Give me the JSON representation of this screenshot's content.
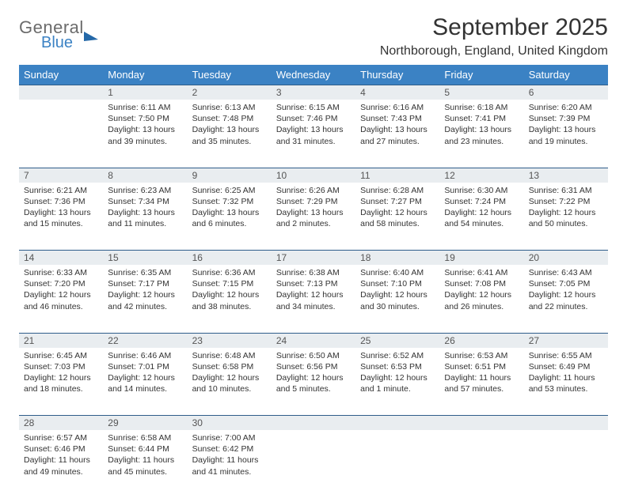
{
  "logo": {
    "general": "General",
    "blue": "Blue"
  },
  "title": "September 2025",
  "location": "Northborough, England, United Kingdom",
  "dayHeaders": [
    "Sunday",
    "Monday",
    "Tuesday",
    "Wednesday",
    "Thursday",
    "Friday",
    "Saturday"
  ],
  "colors": {
    "headerBg": "#3b82c4",
    "headerText": "#ffffff",
    "dayNumBg": "#e9edf0",
    "rowDivider": "#2e5d8a",
    "text": "#333333",
    "logoGray": "#6b6b6b",
    "logoBlue": "#3b82c4"
  },
  "weeks": [
    {
      "nums": [
        "",
        "1",
        "2",
        "3",
        "4",
        "5",
        "6"
      ],
      "cells": [
        null,
        {
          "sr": "Sunrise: 6:11 AM",
          "ss": "Sunset: 7:50 PM",
          "d1": "Daylight: 13 hours",
          "d2": "and 39 minutes."
        },
        {
          "sr": "Sunrise: 6:13 AM",
          "ss": "Sunset: 7:48 PM",
          "d1": "Daylight: 13 hours",
          "d2": "and 35 minutes."
        },
        {
          "sr": "Sunrise: 6:15 AM",
          "ss": "Sunset: 7:46 PM",
          "d1": "Daylight: 13 hours",
          "d2": "and 31 minutes."
        },
        {
          "sr": "Sunrise: 6:16 AM",
          "ss": "Sunset: 7:43 PM",
          "d1": "Daylight: 13 hours",
          "d2": "and 27 minutes."
        },
        {
          "sr": "Sunrise: 6:18 AM",
          "ss": "Sunset: 7:41 PM",
          "d1": "Daylight: 13 hours",
          "d2": "and 23 minutes."
        },
        {
          "sr": "Sunrise: 6:20 AM",
          "ss": "Sunset: 7:39 PM",
          "d1": "Daylight: 13 hours",
          "d2": "and 19 minutes."
        }
      ]
    },
    {
      "nums": [
        "7",
        "8",
        "9",
        "10",
        "11",
        "12",
        "13"
      ],
      "cells": [
        {
          "sr": "Sunrise: 6:21 AM",
          "ss": "Sunset: 7:36 PM",
          "d1": "Daylight: 13 hours",
          "d2": "and 15 minutes."
        },
        {
          "sr": "Sunrise: 6:23 AM",
          "ss": "Sunset: 7:34 PM",
          "d1": "Daylight: 13 hours",
          "d2": "and 11 minutes."
        },
        {
          "sr": "Sunrise: 6:25 AM",
          "ss": "Sunset: 7:32 PM",
          "d1": "Daylight: 13 hours",
          "d2": "and 6 minutes."
        },
        {
          "sr": "Sunrise: 6:26 AM",
          "ss": "Sunset: 7:29 PM",
          "d1": "Daylight: 13 hours",
          "d2": "and 2 minutes."
        },
        {
          "sr": "Sunrise: 6:28 AM",
          "ss": "Sunset: 7:27 PM",
          "d1": "Daylight: 12 hours",
          "d2": "and 58 minutes."
        },
        {
          "sr": "Sunrise: 6:30 AM",
          "ss": "Sunset: 7:24 PM",
          "d1": "Daylight: 12 hours",
          "d2": "and 54 minutes."
        },
        {
          "sr": "Sunrise: 6:31 AM",
          "ss": "Sunset: 7:22 PM",
          "d1": "Daylight: 12 hours",
          "d2": "and 50 minutes."
        }
      ]
    },
    {
      "nums": [
        "14",
        "15",
        "16",
        "17",
        "18",
        "19",
        "20"
      ],
      "cells": [
        {
          "sr": "Sunrise: 6:33 AM",
          "ss": "Sunset: 7:20 PM",
          "d1": "Daylight: 12 hours",
          "d2": "and 46 minutes."
        },
        {
          "sr": "Sunrise: 6:35 AM",
          "ss": "Sunset: 7:17 PM",
          "d1": "Daylight: 12 hours",
          "d2": "and 42 minutes."
        },
        {
          "sr": "Sunrise: 6:36 AM",
          "ss": "Sunset: 7:15 PM",
          "d1": "Daylight: 12 hours",
          "d2": "and 38 minutes."
        },
        {
          "sr": "Sunrise: 6:38 AM",
          "ss": "Sunset: 7:13 PM",
          "d1": "Daylight: 12 hours",
          "d2": "and 34 minutes."
        },
        {
          "sr": "Sunrise: 6:40 AM",
          "ss": "Sunset: 7:10 PM",
          "d1": "Daylight: 12 hours",
          "d2": "and 30 minutes."
        },
        {
          "sr": "Sunrise: 6:41 AM",
          "ss": "Sunset: 7:08 PM",
          "d1": "Daylight: 12 hours",
          "d2": "and 26 minutes."
        },
        {
          "sr": "Sunrise: 6:43 AM",
          "ss": "Sunset: 7:05 PM",
          "d1": "Daylight: 12 hours",
          "d2": "and 22 minutes."
        }
      ]
    },
    {
      "nums": [
        "21",
        "22",
        "23",
        "24",
        "25",
        "26",
        "27"
      ],
      "cells": [
        {
          "sr": "Sunrise: 6:45 AM",
          "ss": "Sunset: 7:03 PM",
          "d1": "Daylight: 12 hours",
          "d2": "and 18 minutes."
        },
        {
          "sr": "Sunrise: 6:46 AM",
          "ss": "Sunset: 7:01 PM",
          "d1": "Daylight: 12 hours",
          "d2": "and 14 minutes."
        },
        {
          "sr": "Sunrise: 6:48 AM",
          "ss": "Sunset: 6:58 PM",
          "d1": "Daylight: 12 hours",
          "d2": "and 10 minutes."
        },
        {
          "sr": "Sunrise: 6:50 AM",
          "ss": "Sunset: 6:56 PM",
          "d1": "Daylight: 12 hours",
          "d2": "and 5 minutes."
        },
        {
          "sr": "Sunrise: 6:52 AM",
          "ss": "Sunset: 6:53 PM",
          "d1": "Daylight: 12 hours",
          "d2": "and 1 minute."
        },
        {
          "sr": "Sunrise: 6:53 AM",
          "ss": "Sunset: 6:51 PM",
          "d1": "Daylight: 11 hours",
          "d2": "and 57 minutes."
        },
        {
          "sr": "Sunrise: 6:55 AM",
          "ss": "Sunset: 6:49 PM",
          "d1": "Daylight: 11 hours",
          "d2": "and 53 minutes."
        }
      ]
    },
    {
      "nums": [
        "28",
        "29",
        "30",
        "",
        "",
        "",
        ""
      ],
      "cells": [
        {
          "sr": "Sunrise: 6:57 AM",
          "ss": "Sunset: 6:46 PM",
          "d1": "Daylight: 11 hours",
          "d2": "and 49 minutes."
        },
        {
          "sr": "Sunrise: 6:58 AM",
          "ss": "Sunset: 6:44 PM",
          "d1": "Daylight: 11 hours",
          "d2": "and 45 minutes."
        },
        {
          "sr": "Sunrise: 7:00 AM",
          "ss": "Sunset: 6:42 PM",
          "d1": "Daylight: 11 hours",
          "d2": "and 41 minutes."
        },
        null,
        null,
        null,
        null
      ]
    }
  ]
}
